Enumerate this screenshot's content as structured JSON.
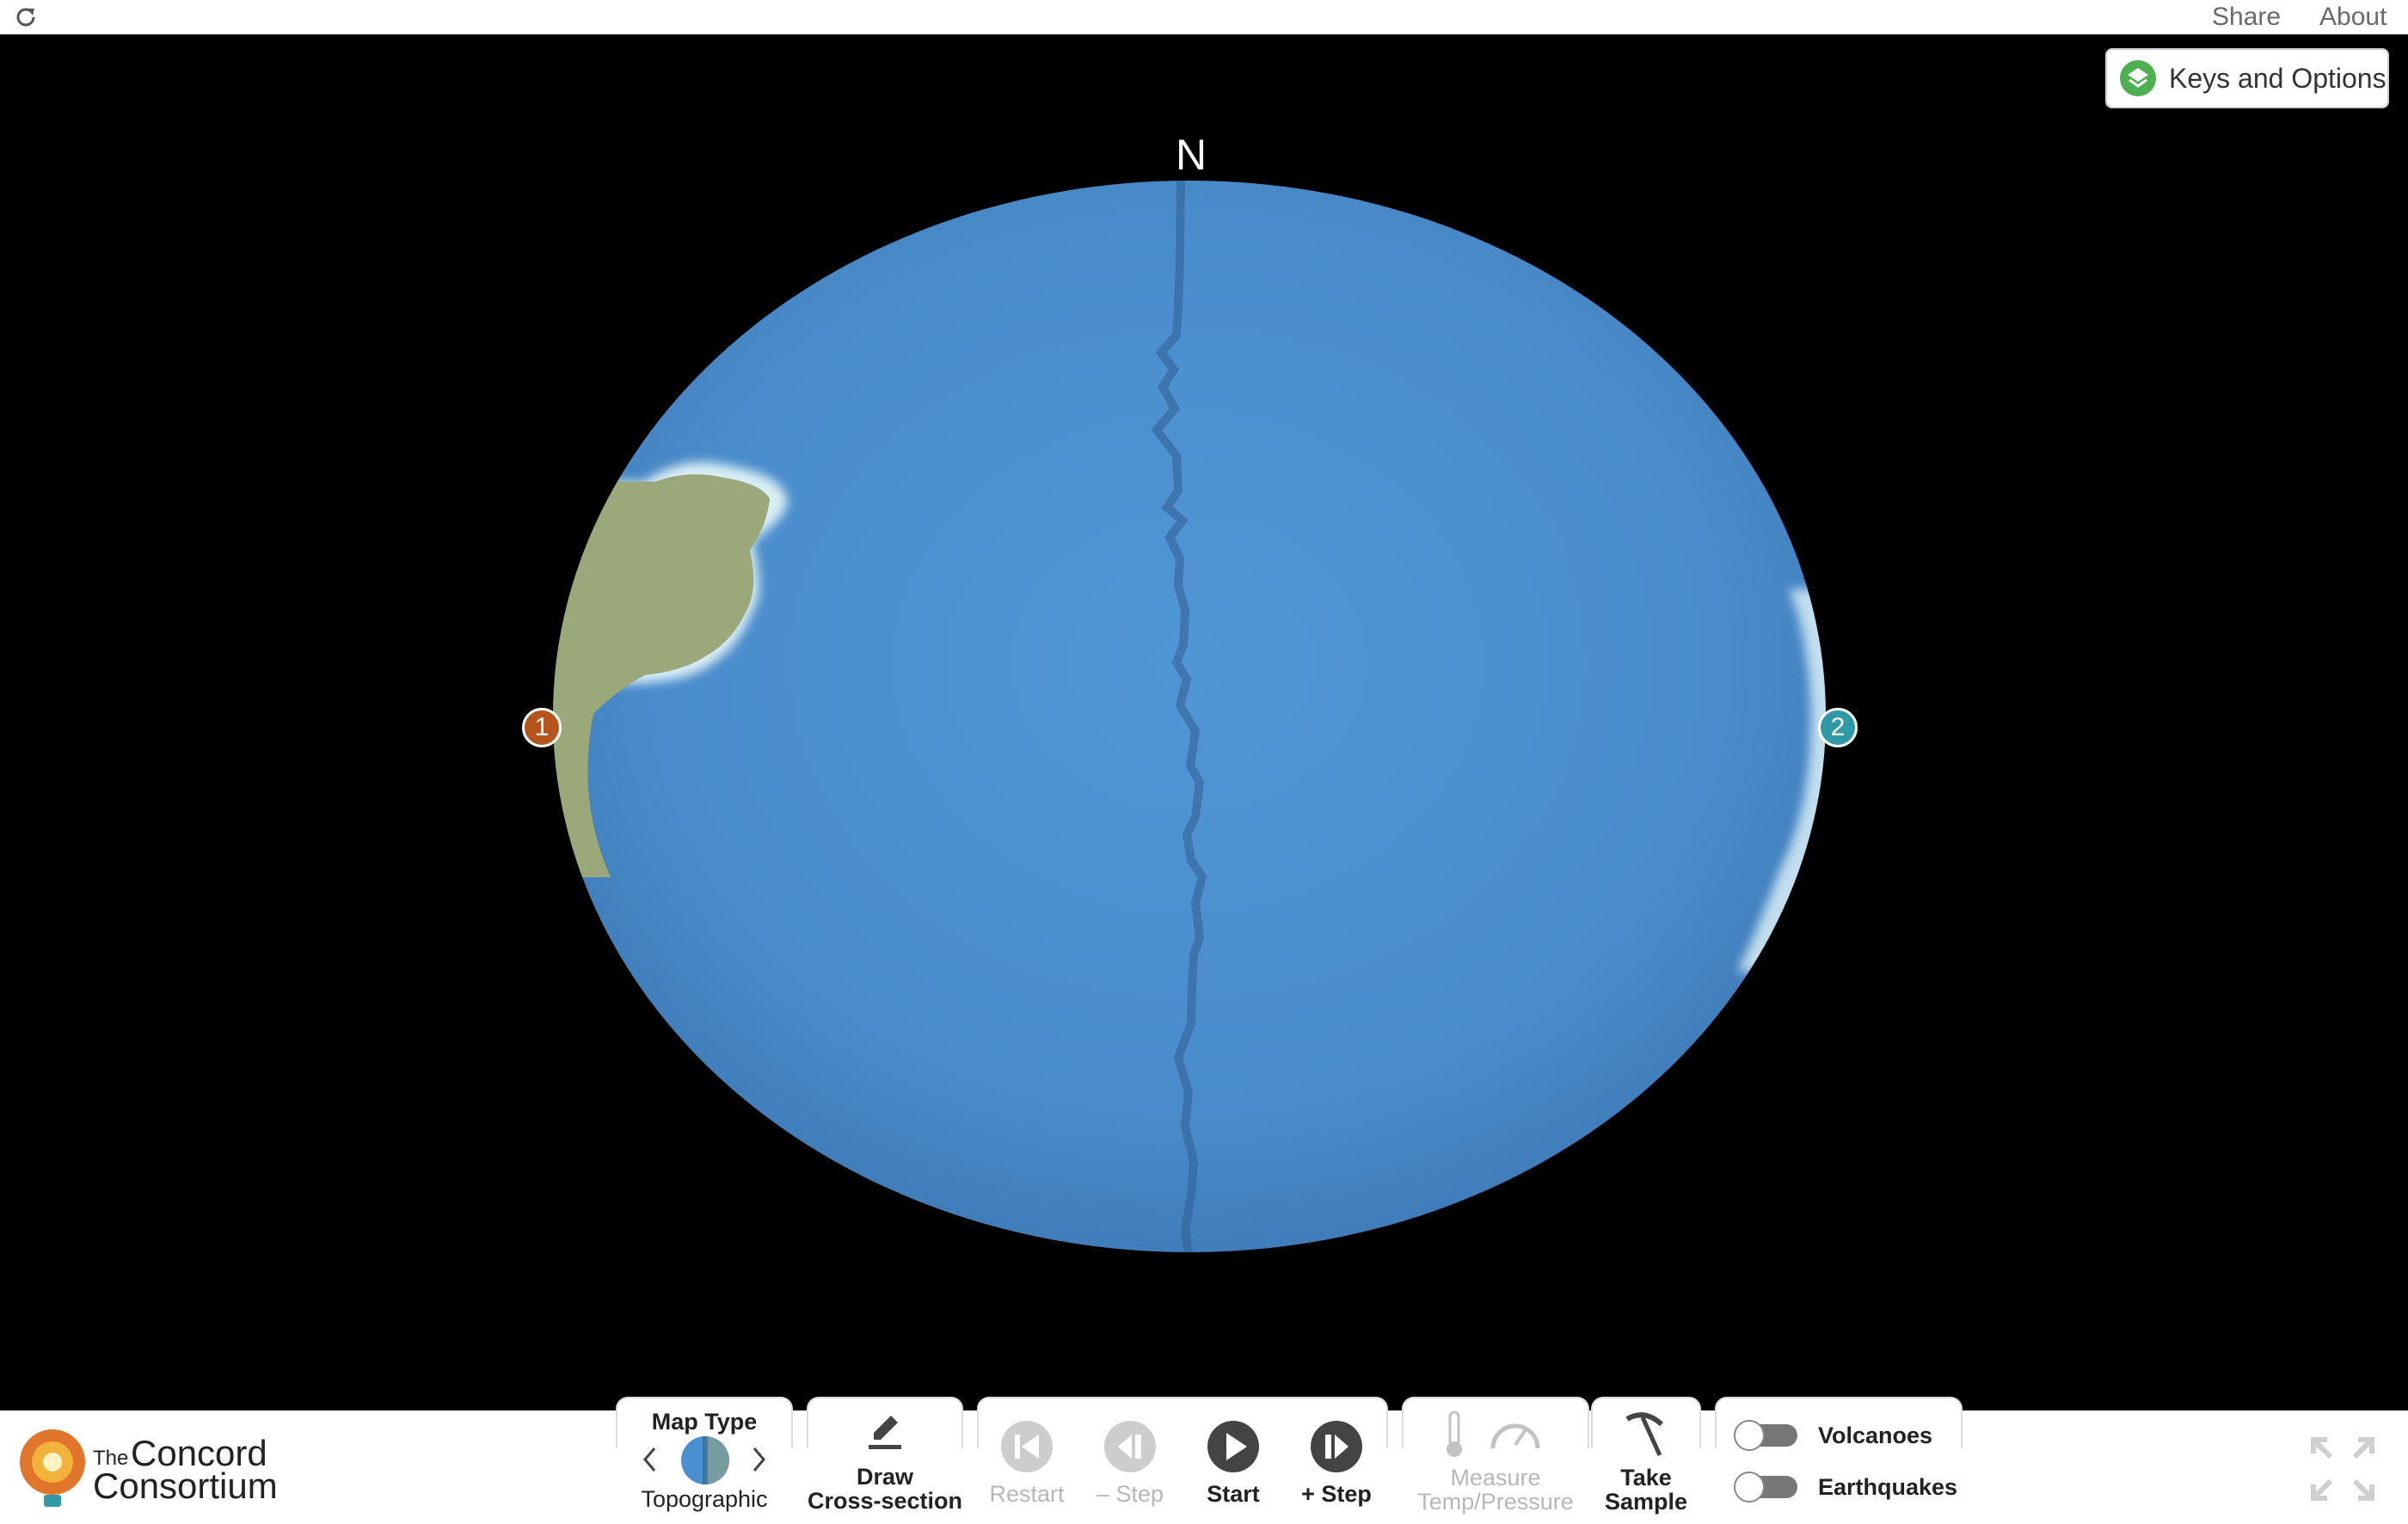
{
  "header": {
    "share_label": "Share",
    "about_label": "About"
  },
  "keys_button": {
    "label": "Keys and Options"
  },
  "globe": {
    "north_label": "N",
    "markers": [
      {
        "label": "1",
        "color": "#b5541c"
      },
      {
        "label": "2",
        "color": "#2f9aa6"
      }
    ],
    "ocean_color": "#4a8fcf",
    "continent_color": "#9aa87a"
  },
  "logo": {
    "the": "The",
    "line1": "Concord",
    "line2": "Consortium"
  },
  "controls": {
    "map_type": {
      "title": "Map Type",
      "value": "Topographic"
    },
    "draw_cross_section": {
      "line1": "Draw",
      "line2": "Cross-section"
    },
    "restart": "Restart",
    "step_back": "– Step",
    "start": "Start",
    "step_forward": "+ Step",
    "measure": {
      "line1": "Measure",
      "line2": "Temp/Pressure"
    },
    "take_sample": {
      "line1": "Take",
      "line2": "Sample"
    },
    "volcanoes": {
      "label": "Volcanoes",
      "on": false
    },
    "earthquakes": {
      "label": "Earthquakes",
      "on": false
    }
  }
}
